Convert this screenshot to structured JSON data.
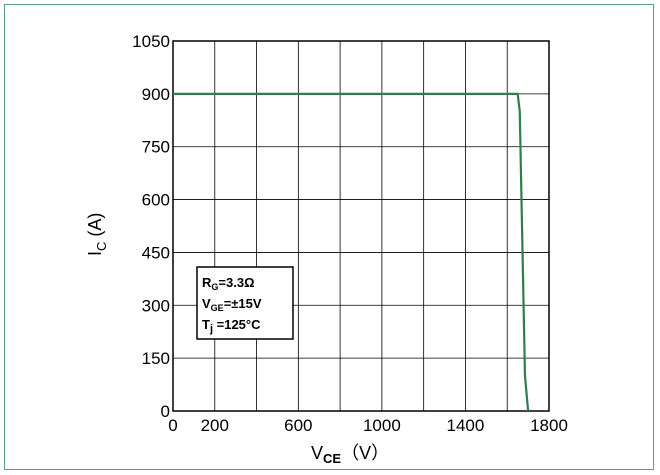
{
  "chart_data": {
    "type": "line",
    "xlabel": {
      "main": "V",
      "sub": "CE",
      "unit": "（V）"
    },
    "ylabel": {
      "main": "I",
      "sub": "C",
      "unit": " (A)"
    },
    "xlim": [
      0,
      1800
    ],
    "ylim": [
      0,
      1050
    ],
    "x_ticks": [
      0,
      200,
      600,
      1000,
      1400,
      1800
    ],
    "x_tick_labels": [
      "0",
      "200",
      "600",
      "1000",
      "1400",
      "1800"
    ],
    "x_grid": [
      200,
      400,
      600,
      800,
      1000,
      1200,
      1400,
      1600
    ],
    "y_ticks": [
      0,
      150,
      300,
      450,
      600,
      750,
      900,
      1050
    ],
    "y_tick_labels": [
      "0",
      "150",
      "300",
      "450",
      "600",
      "750",
      "900",
      "1050"
    ],
    "grid": true,
    "series": [
      {
        "color": "#2f7d4a",
        "points": [
          [
            0,
            900
          ],
          [
            1650,
            900
          ],
          [
            1660,
            850
          ],
          [
            1685,
            100
          ],
          [
            1700,
            0
          ]
        ]
      }
    ],
    "annotation": {
      "position": "lower-left",
      "lines": [
        {
          "main": "R",
          "sub": "G",
          "rest": "=3.3Ω"
        },
        {
          "main": "V",
          "sub": "GE",
          "rest": "=±15V"
        },
        {
          "main": "T",
          "sub": "j",
          "rest": " =125°C"
        }
      ]
    }
  },
  "colors": {
    "frame": "#5a9e8a",
    "curve": "#2f7d4a"
  }
}
